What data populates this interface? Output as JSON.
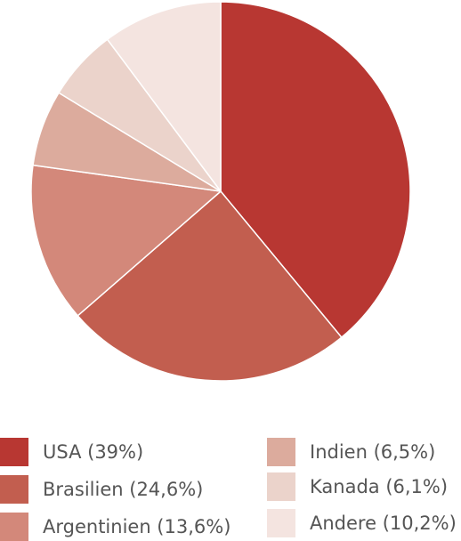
{
  "chart_data": {
    "type": "pie",
    "title": "",
    "slices": [
      {
        "label": "USA (39%)",
        "value": 39.0,
        "color": "#b83732"
      },
      {
        "label": "Brasilien (24,6%)",
        "value": 24.6,
        "color": "#c25e4f"
      },
      {
        "label": "Argentinien (13,6%)",
        "value": 13.6,
        "color": "#d3887a"
      },
      {
        "label": "Indien (6,5%)",
        "value": 6.5,
        "color": "#dcab9d"
      },
      {
        "label": "Kanada (6,1%)",
        "value": 6.1,
        "color": "#ebd3cb"
      },
      {
        "label": "Andere (10,2%)",
        "value": 10.2,
        "color": "#f4e4e0"
      }
    ],
    "start_angle": "12 o'clock",
    "direction": "clockwise",
    "legend_position": "bottom"
  }
}
